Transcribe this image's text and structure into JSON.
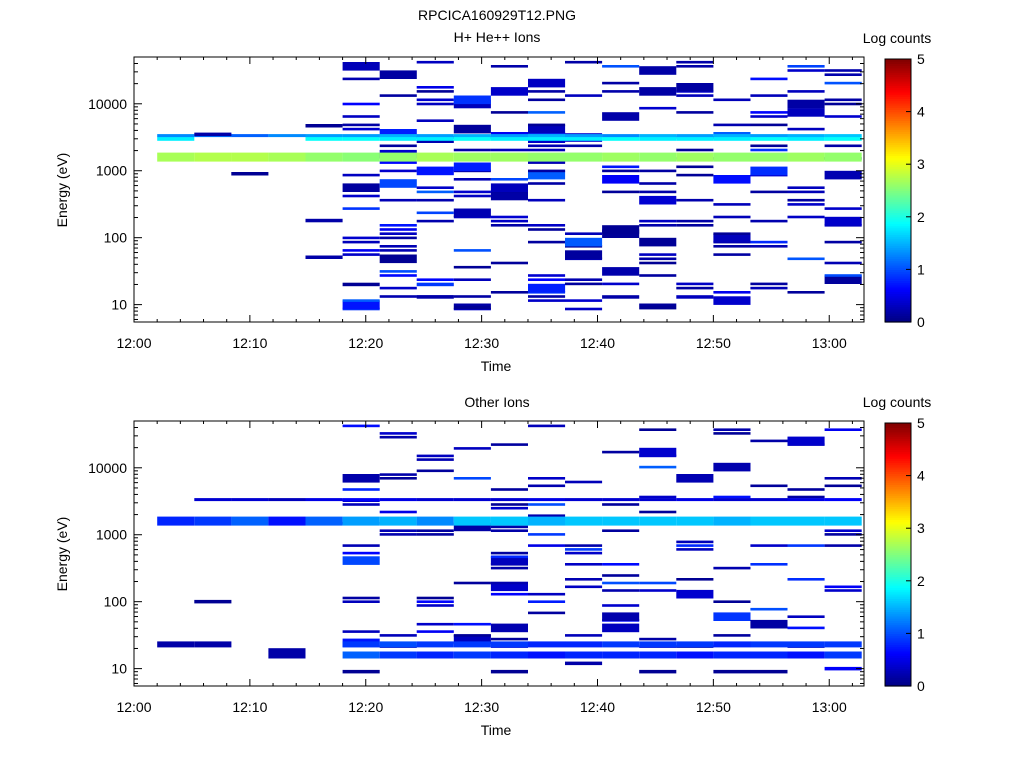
{
  "figure_title": "RPCICA160929T12.PNG",
  "chart_data": [
    {
      "type": "heatmap",
      "title": "H+ He++ Ions",
      "xlabel": "Time",
      "ylabel": "Energy (eV)",
      "x_ticks": [
        "12:00",
        "12:10",
        "12:20",
        "12:30",
        "12:40",
        "12:50",
        "13:00"
      ],
      "x_tick_minutes": [
        0,
        10,
        20,
        30,
        40,
        50,
        60
      ],
      "xlim_minutes": [
        0,
        63
      ],
      "y_scale": "log",
      "ylim": [
        5.5,
        50000
      ],
      "y_ticks": [
        10,
        100,
        1000,
        10000
      ],
      "y_tick_labels": [
        "10",
        "100",
        "1000",
        "10000"
      ],
      "colorbar_label": "Log counts",
      "colorbar_ticks": [
        "0",
        "1",
        "2",
        "3",
        "4",
        "5"
      ],
      "colorbar_range": [
        0,
        5
      ],
      "time_bins_minutes": [
        2,
        5.2,
        8.4,
        11.6,
        14.8,
        18,
        21.2,
        24.4,
        27.6,
        30.8,
        34,
        37.2,
        40.4,
        43.6,
        46.8,
        50,
        53.2,
        56.4,
        59.6,
        62.8
      ],
      "band_a_1600eV_log_counts": [
        2.7,
        2.75,
        2.75,
        2.7,
        2.6,
        2.55,
        2.6,
        2.7,
        2.65,
        2.65,
        2.6,
        2.6,
        2.65,
        2.6,
        2.65,
        2.6,
        2.6,
        2.65,
        2.6
      ],
      "band_b_3300eV_log_counts": [
        1.3,
        1.2,
        1.1,
        1.3,
        1.4,
        1.4,
        1.5,
        1.4,
        1.5,
        1.4,
        1.5,
        1.4,
        1.3,
        1.5,
        1.4,
        1.5,
        1.4,
        1.5,
        1.6
      ],
      "band_c_3000eV_log_counts": [
        1.8,
        0,
        0,
        0,
        1.9,
        1.9,
        1.8,
        1.8,
        1.9,
        1.8,
        1.8,
        1.8,
        1.9,
        1.8,
        1.8,
        1.8,
        1.9,
        1.8,
        1.9
      ],
      "scattered_counts": {
        "start_minutes": 18,
        "end_minutes": 63,
        "emin": 8,
        "emax": 45000,
        "seed": 7,
        "density": 0.26
      },
      "early_points": [
        {
          "t": 5.5,
          "e": 3500,
          "c": 0.2
        },
        {
          "t": 8.6,
          "e": 900,
          "c": 0.1
        },
        {
          "t": 14.8,
          "e": 4700,
          "c": 0.1
        },
        {
          "t": 15,
          "e": 51,
          "c": 0.2
        },
        {
          "t": 15,
          "e": 180,
          "c": 0.2
        },
        {
          "t": 30,
          "e": 9,
          "c": 0.1
        },
        {
          "t": 45,
          "e": 9,
          "c": 0.1
        },
        {
          "t": 26,
          "e": 20,
          "c": 0.9
        },
        {
          "t": 26,
          "e": 13,
          "c": 0.2
        },
        {
          "t": 21,
          "e": 20,
          "c": 0.1
        },
        {
          "t": 41.5,
          "e": 13,
          "c": 0.2
        },
        {
          "t": 48.5,
          "e": 13,
          "c": 0.3
        }
      ]
    },
    {
      "type": "heatmap",
      "title": "Other Ions",
      "xlabel": "Time",
      "ylabel": "Energy (eV)",
      "x_ticks": [
        "12:00",
        "12:10",
        "12:20",
        "12:30",
        "12:40",
        "12:50",
        "13:00"
      ],
      "x_tick_minutes": [
        0,
        10,
        20,
        30,
        40,
        50,
        60
      ],
      "xlim_minutes": [
        0,
        63
      ],
      "y_scale": "log",
      "ylim": [
        5.5,
        50000
      ],
      "y_ticks": [
        10,
        100,
        1000,
        10000
      ],
      "y_tick_labels": [
        "10",
        "100",
        "1000",
        "10000"
      ],
      "colorbar_label": "Log counts",
      "colorbar_ticks": [
        "0",
        "1",
        "2",
        "3",
        "4",
        "5"
      ],
      "colorbar_range": [
        0,
        5
      ],
      "time_bins_minutes": [
        2,
        5.2,
        8.4,
        11.6,
        14.8,
        18,
        21.2,
        24.4,
        27.6,
        30.8,
        34,
        37.2,
        40.4,
        43.6,
        46.8,
        50,
        53.2,
        56.4,
        59.6,
        62.8
      ],
      "band_a_1600eV_log_counts": [
        0.8,
        0.9,
        1.1,
        0.7,
        1.1,
        1.4,
        1.5,
        1.3,
        1.6,
        1.6,
        1.5,
        1.6,
        1.6,
        1.6,
        1.6,
        1.5,
        1.6,
        1.6,
        1.6
      ],
      "band_b_3300eV_log_counts": [
        0,
        0.4,
        0.4,
        0.3,
        0.5,
        0.6,
        0.5,
        0.4,
        0.4,
        0.4,
        0.5,
        0.4,
        0.4,
        0.4,
        0.5,
        0.4,
        0.4,
        0.5,
        0.6
      ],
      "band_low_22eV_log_counts": [
        0.2,
        0.2,
        0,
        0,
        0,
        0.9,
        1.0,
        0.9,
        0.9,
        0.9,
        0.8,
        0.8,
        0.9,
        0.9,
        0.9,
        0.8,
        0.9,
        0.9,
        0.9
      ],
      "band_low_16eV_log_counts": [
        0,
        0,
        0,
        0.2,
        0,
        1.1,
        0.9,
        0.8,
        0.9,
        0.8,
        0.7,
        0.8,
        0.8,
        0.8,
        0.7,
        0.8,
        0.8,
        0.7,
        0.9
      ],
      "scattered_counts": {
        "start_minutes": 18,
        "end_minutes": 63,
        "emin": 20,
        "emax": 45000,
        "seed": 19,
        "density": 0.16
      },
      "early_points": [
        {
          "t": 6.4,
          "e": 100,
          "c": 0.1
        },
        {
          "t": 13,
          "e": 19,
          "c": 0.2
        },
        {
          "t": 20,
          "e": 9,
          "c": 0.1
        },
        {
          "t": 33,
          "e": 9,
          "c": 0.1
        },
        {
          "t": 39,
          "e": 12,
          "c": 0.2
        },
        {
          "t": 45,
          "e": 9,
          "c": 0.1
        },
        {
          "t": 52,
          "e": 9,
          "c": 0.1
        },
        {
          "t": 62,
          "e": 10,
          "c": 0.6
        },
        {
          "t": 55,
          "e": 9,
          "c": 0.1
        }
      ]
    }
  ]
}
